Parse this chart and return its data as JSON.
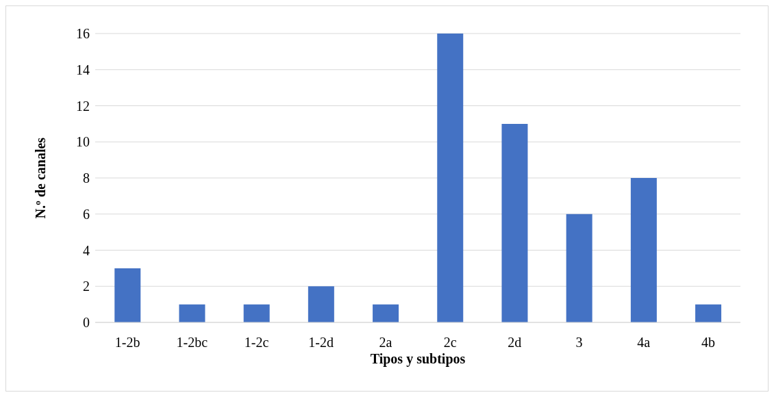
{
  "chart_data": {
    "type": "bar",
    "xlabel": "Tipos y subtipos",
    "ylabel": "N.º de canales",
    "categories": [
      "1-2b",
      "1-2bc",
      "1-2c",
      "1-2d",
      "2a",
      "2c",
      "2d",
      "3",
      "4a",
      "4b"
    ],
    "values": [
      3,
      1,
      1,
      2,
      1,
      16,
      11,
      6,
      8,
      1
    ],
    "color": "#4472c4",
    "ylim": [
      0,
      16
    ],
    "yticks": [
      0,
      2,
      4,
      6,
      8,
      10,
      12,
      14,
      16
    ],
    "grid": "y"
  }
}
